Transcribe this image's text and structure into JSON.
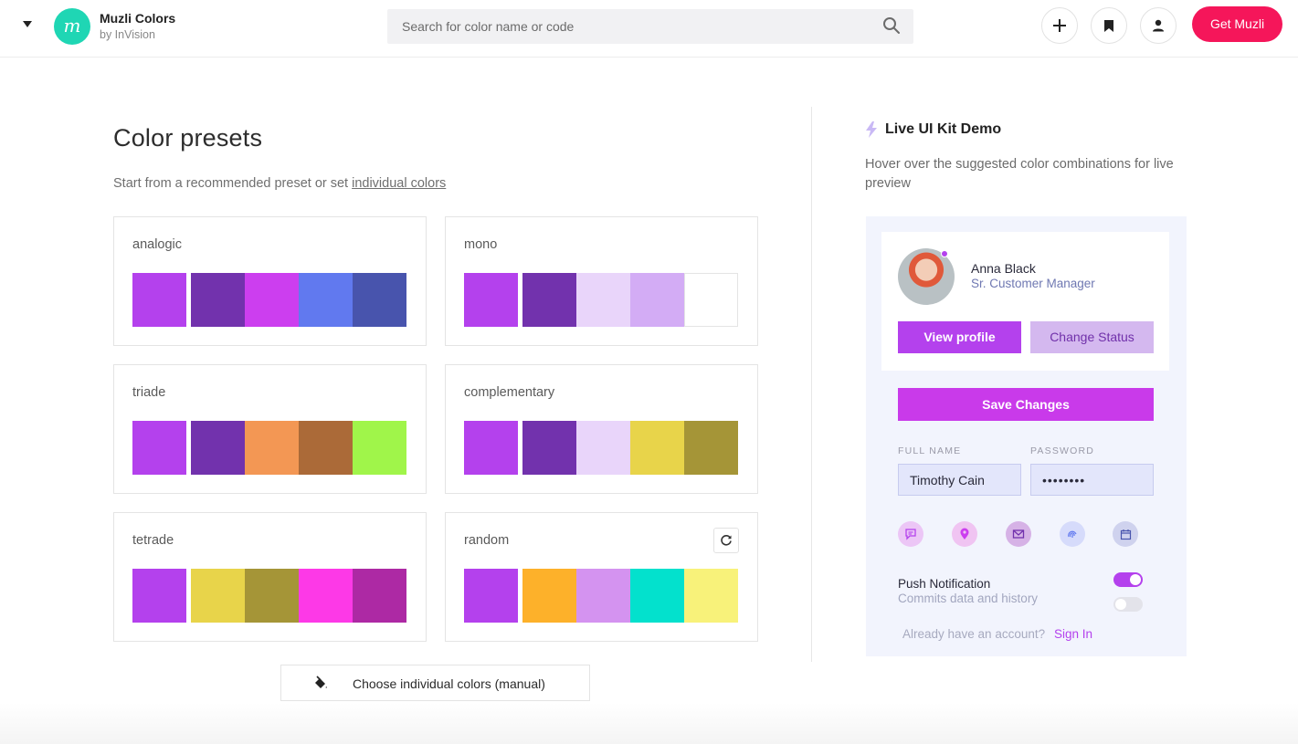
{
  "header": {
    "brand_logo_letter": "m",
    "brand_name": "Muzli Colors",
    "brand_sub": "by InVision",
    "search_placeholder": "Search for color name or code",
    "get_button": "Get Muzli",
    "icons": [
      "chevron-down-icon",
      "plus-icon",
      "bookmark-icon",
      "user-icon",
      "search-icon"
    ]
  },
  "presets": {
    "title": "Color presets",
    "subtitle_prefix": "Start from a recommended preset or set ",
    "subtitle_link": "individual colors",
    "cards": [
      {
        "label": "analogic",
        "colors": [
          "#b441ed",
          "#7232ad",
          "#cc3eef",
          "#6179ef",
          "#4854ad"
        ]
      },
      {
        "label": "mono",
        "colors": [
          "#b441ed",
          "#7232ad",
          "#e9d5fa",
          "#d3acf5",
          "#ffffff"
        ]
      },
      {
        "label": "triade",
        "colors": [
          "#b441ed",
          "#7232ad",
          "#f39754",
          "#ab6a38",
          "#a0f54a"
        ]
      },
      {
        "label": "complementary",
        "colors": [
          "#b441ed",
          "#7232ad",
          "#e9d5fa",
          "#e8d44a",
          "#a59537"
        ]
      },
      {
        "label": "tetrade",
        "colors": [
          "#b441ed",
          "#e8d44a",
          "#a59537",
          "#fd39e7",
          "#ad29a4"
        ]
      },
      {
        "label": "random",
        "colors": [
          "#b441ed",
          "#fdb12a",
          "#d493f0",
          "#03e1cd",
          "#f8f27a"
        ]
      }
    ],
    "manual_button": "Choose individual colors (manual)"
  },
  "demo": {
    "title": "Live UI Kit Demo",
    "description": "Hover over the suggested color combinations for live preview",
    "profile_name": "Anna Black",
    "profile_role": "Sr. Customer Manager",
    "view_profile": "View profile",
    "change_status": "Change Status",
    "save_changes": "Save Changes",
    "full_name_label": "FULL NAME",
    "full_name_value": "Timothy Cain",
    "password_label": "PASSWORD",
    "password_value": "••••••••",
    "notification_title": "Push Notification",
    "notification_sub": "Commits data and history",
    "account_text": "Already have an account?",
    "signin_text": "Sign In",
    "icon_row": [
      "chat-icon",
      "location-pin-icon",
      "mail-icon",
      "fingerprint-icon",
      "calendar-icon"
    ],
    "toggle_1_on": true,
    "toggle_2_on": false
  }
}
